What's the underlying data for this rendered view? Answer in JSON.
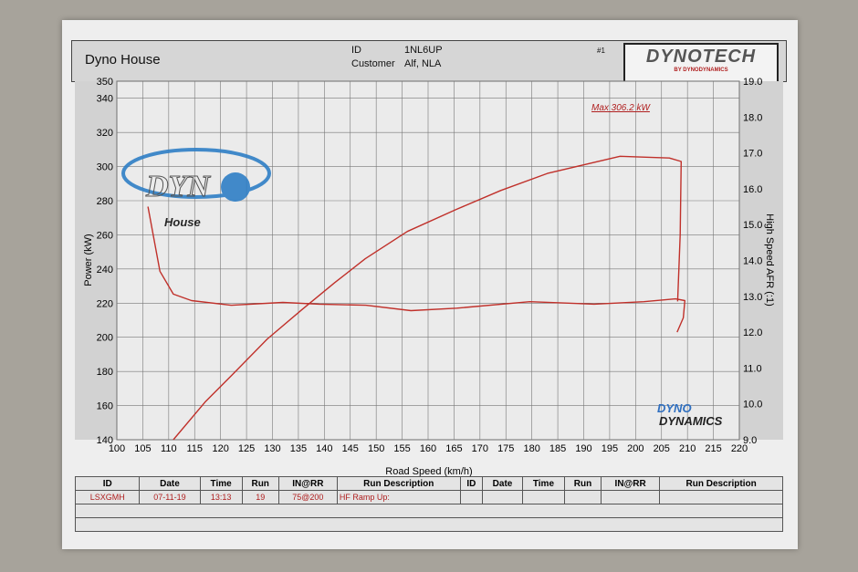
{
  "header": {
    "shop_name": "Dyno House",
    "id_label": "ID",
    "id_value": "1NL6UP",
    "customer_label": "Customer",
    "customer_value": "Alf, NLA",
    "page_number": "#1",
    "brand_logo": "DYNOTECH",
    "brand_sub": "BY DYNODYNAMICS"
  },
  "watermarks": {
    "dyno_house_logo": "DYNO House",
    "dynodynamics_logo": "DYNO DYNAMICS"
  },
  "chart_data": {
    "type": "line",
    "xlabel": "Road Speed (km/h)",
    "ylabel": "Power (kW)",
    "y2label": "High Speed AFR (:1)",
    "xlim": [
      100,
      220
    ],
    "ylim": [
      140,
      350
    ],
    "y2lim": [
      9.0,
      19.0
    ],
    "xticks": [
      "100",
      "105",
      "110",
      "115",
      "120",
      "125",
      "130",
      "135",
      "140",
      "145",
      "150",
      "155",
      "160",
      "165",
      "170",
      "175",
      "180",
      "185",
      "190",
      "195",
      "200",
      "205",
      "210",
      "215",
      "220"
    ],
    "yticks": [
      "140",
      "160",
      "180",
      "200",
      "220",
      "240",
      "260",
      "280",
      "300",
      "320",
      "340",
      "350"
    ],
    "y2ticks": [
      "9.0",
      "10.0",
      "11.0",
      "12.0",
      "13.0",
      "14.0",
      "15.0",
      "16.0",
      "17.0",
      "18.0",
      "19.0"
    ],
    "grid": true,
    "annotation": "Max 306.2 kW",
    "color": "#c0302a",
    "series": [
      {
        "axis": "left",
        "x": [
          110.9,
          117,
          123.2,
          129,
          135.6,
          142,
          147.9,
          156,
          165.5,
          174,
          183,
          190,
          197,
          202,
          206.5,
          208.8,
          208.6,
          208.1
        ],
        "y": [
          140,
          162,
          181,
          199,
          216,
          232,
          246,
          262,
          275,
          286,
          296,
          301,
          306,
          305.5,
          305,
          303,
          260,
          221
        ]
      },
      {
        "axis": "right",
        "x": [
          106,
          108.3,
          110.9,
          114.4,
          122,
          132,
          139,
          148,
          156.7,
          165.5,
          179.6,
          192,
          201.6,
          207.7,
          209.5,
          209.2,
          208
        ],
        "y": [
          15.5,
          13.7,
          13.06,
          12.88,
          12.75,
          12.83,
          12.78,
          12.75,
          12.6,
          12.67,
          12.85,
          12.78,
          12.85,
          12.93,
          12.88,
          12.4,
          12.0
        ]
      }
    ]
  },
  "run_table": {
    "headers": [
      "ID",
      "Date",
      "Time",
      "Run",
      "IN@RR",
      "Run Description",
      "ID",
      "Date",
      "Time",
      "Run",
      "IN@RR",
      "Run Description"
    ],
    "rows": [
      [
        "LSXGMH",
        "07-11-19",
        "13:13",
        "19",
        "75@200",
        "HF Ramp Up:",
        "",
        "",
        "",
        "",
        "",
        ""
      ]
    ]
  }
}
